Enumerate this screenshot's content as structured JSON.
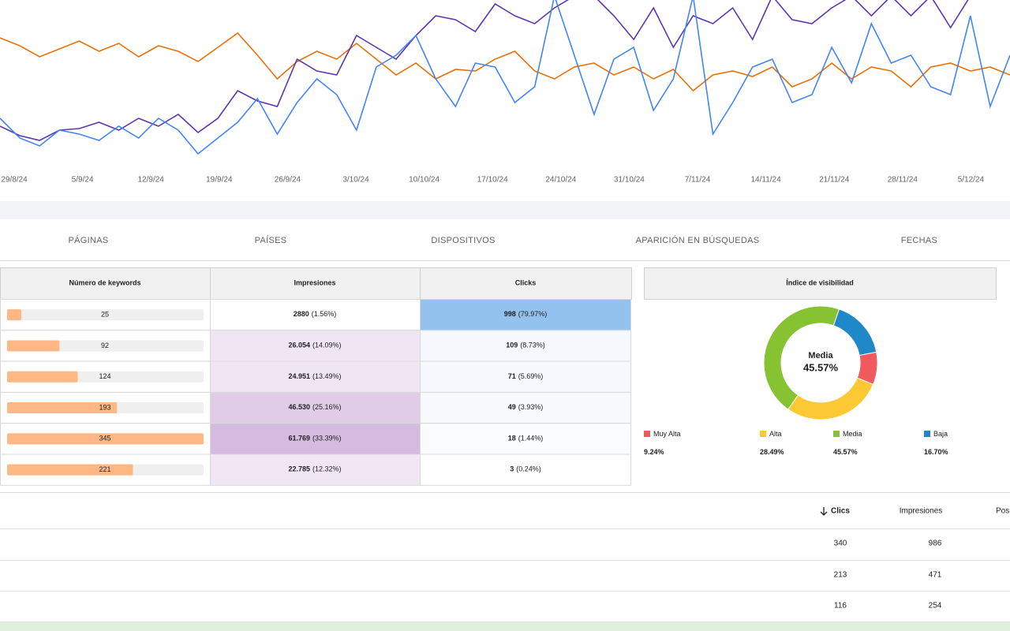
{
  "chart": {
    "type": "line",
    "ylim": [
      0,
      210
    ],
    "x_labels": [
      "29/8/24",
      "5/9/24",
      "12/9/24",
      "19/9/24",
      "26/9/24",
      "3/10/24",
      "10/10/24",
      "17/10/24",
      "24/10/24",
      "31/10/24",
      "7/11/24",
      "14/11/24",
      "21/11/24",
      "28/11/24",
      "5/12/24"
    ],
    "series": [
      {
        "color": "#e8710a",
        "values": [
          162,
          152,
          138,
          148,
          158,
          145,
          155,
          138,
          152,
          145,
          132,
          150,
          168,
          140,
          110,
          132,
          145,
          135,
          155,
          135,
          115,
          130,
          110,
          122,
          120,
          135,
          145,
          120,
          110,
          125,
          130,
          115,
          125,
          110,
          122,
          95,
          115,
          120,
          113,
          125,
          100,
          110,
          130,
          110,
          125,
          120,
          100,
          125,
          130,
          120,
          125,
          115
        ]
      },
      {
        "color": "#5e35b1",
        "values": [
          50,
          38,
          32,
          45,
          47,
          55,
          45,
          60,
          50,
          65,
          42,
          60,
          95,
          82,
          75,
          135,
          120,
          115,
          165,
          150,
          135,
          165,
          190,
          185,
          170,
          205,
          190,
          180,
          200,
          215,
          215,
          190,
          160,
          200,
          150,
          190,
          180,
          200,
          160,
          215,
          185,
          180,
          200,
          215,
          190,
          215,
          190,
          215,
          175,
          215,
          220,
          220
        ]
      },
      {
        "color": "#4285f4",
        "values": [
          60,
          35,
          25,
          45,
          40,
          32,
          50,
          35,
          60,
          45,
          15,
          35,
          55,
          85,
          40,
          80,
          110,
          90,
          45,
          125,
          140,
          165,
          110,
          75,
          130,
          125,
          80,
          100,
          215,
          140,
          65,
          135,
          150,
          70,
          110,
          215,
          40,
          80,
          125,
          135,
          80,
          90,
          150,
          105,
          180,
          130,
          140,
          100,
          90,
          190,
          75,
          140
        ]
      }
    ]
  },
  "tabs": [
    "PÁGINAS",
    "PAÍSES",
    "DISPOSITIVOS",
    "APARICIÓN EN BÚSQUEDAS",
    "FECHAS"
  ],
  "keywords_table": {
    "headers": [
      "Número de keywords",
      "Impresiones",
      "Clicks"
    ],
    "xlim": [
      0,
      345
    ],
    "rows": [
      {
        "keywords": 25,
        "impressions": "2880",
        "impressions_pct": "(1.56%)",
        "impressions_bg": "#ffffff",
        "clicks": "998",
        "clicks_pct": "(79.97%)",
        "clicks_bg": "#94c2ee"
      },
      {
        "keywords": 92,
        "impressions": "26.054",
        "impressions_pct": "(14.09%)",
        "impressions_bg": "#f0e6f3",
        "clicks": "109",
        "clicks_pct": "(8.73%)",
        "clicks_bg": "#f5f9fd"
      },
      {
        "keywords": 124,
        "impressions": "24.951",
        "impressions_pct": "(13.49%)",
        "impressions_bg": "#f0e6f3",
        "clicks": "71",
        "clicks_pct": "(5.69%)",
        "clicks_bg": "#f5f9fd"
      },
      {
        "keywords": 193,
        "impressions": "46.530",
        "impressions_pct": "(25.16%)",
        "impressions_bg": "#e1cde7",
        "clicks": "49",
        "clicks_pct": "(3.93%)",
        "clicks_bg": "#f7fafd"
      },
      {
        "keywords": 345,
        "impressions": "61.769",
        "impressions_pct": "(33.39%)",
        "impressions_bg": "#d5bbdf",
        "clicks": "18",
        "clicks_pct": "(1.44%)",
        "clicks_bg": "#fbfcfe"
      },
      {
        "keywords": 221,
        "impressions": "22.785",
        "impressions_pct": "(12.32%)",
        "impressions_bg": "#f1e7f4",
        "clicks": "3",
        "clicks_pct": "(0.24%)",
        "clicks_bg": "#ffffff"
      }
    ]
  },
  "visibility": {
    "type": "pie",
    "title": "Índice de visibilidad",
    "center_label": "Media",
    "center_index": 2,
    "categories": [
      "Muy Alta",
      "Alta",
      "Media",
      "Baja"
    ],
    "values": [
      9.24,
      28.49,
      45.57,
      16.7
    ],
    "value_labels": [
      "9.24%",
      "28.49%",
      "45.57%",
      "16.70%"
    ],
    "colors": [
      "#f05a5e",
      "#fcc934",
      "#86c232",
      "#1e88c8"
    ]
  },
  "results_table": {
    "headers": [
      "Clics",
      "Impresiones",
      "Posi"
    ],
    "rows": [
      [
        "340",
        "986"
      ],
      [
        "213",
        "471"
      ],
      [
        "116",
        "254"
      ]
    ]
  }
}
